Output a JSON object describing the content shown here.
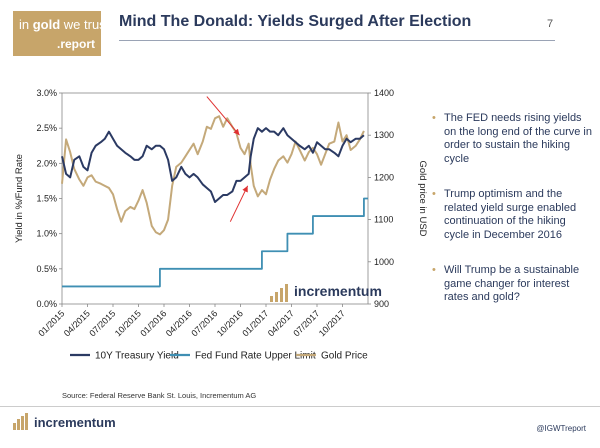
{
  "header": {
    "logo_line1_pre": "in ",
    "logo_line1_bold": "gold",
    "logo_line1_post": " we trust",
    "logo_line2": ".report",
    "title": "Mind The Donald: Yields Surged After Election",
    "page_number": "7"
  },
  "bullets": [
    "The FED needs rising yields on the long end of the curve in order to sustain the hiking cycle",
    "Trump optimism and the related yield surge enabled continuation of the hiking cycle in December 2016",
    "Will Trump be a sustainable game changer for interest rates and gold?"
  ],
  "footer": {
    "source": "Source: Federal Reserve Bank St. Louis, Incrementum AG",
    "brand": "incrementum",
    "handle": "@IGWTreport"
  },
  "colors": {
    "treasury": "#2b3a63",
    "fedfund": "#3f8fb3",
    "gold": "#c4a97a",
    "arrow": "#e03030",
    "brand": "#c7a56a"
  },
  "chart_data": {
    "type": "line",
    "watermark": "incrementum",
    "ylabel_left": "Yield in %/Fund Rate",
    "ylabel_right": "Gold price in USD",
    "ylim_left": [
      0,
      3
    ],
    "ylim_right": [
      900,
      1400
    ],
    "yticks_left": [
      "0.0%",
      "0.5%",
      "1.0%",
      "1.5%",
      "2.0%",
      "2.5%",
      "3.0%"
    ],
    "yticks_right": [
      "900",
      "1000",
      "1100",
      "1200",
      "1300",
      "1400"
    ],
    "xticks": [
      "01/2015",
      "04/2015",
      "07/2015",
      "10/2015",
      "01/2016",
      "04/2016",
      "07/2016",
      "10/2016",
      "01/2017",
      "04/2017",
      "07/2017",
      "10/2017"
    ],
    "x_range": [
      "01/2015",
      "12/2017"
    ],
    "legend_position": "bottom",
    "legend": [
      "10Y Treasury Yield",
      "Fed Fund Rate Upper Limit",
      "Gold Price"
    ],
    "series": [
      {
        "name": "10Y Treasury Yield",
        "axis": "left",
        "x": [
          2015.0,
          2015.04,
          2015.08,
          2015.12,
          2015.17,
          2015.21,
          2015.25,
          2015.29,
          2015.33,
          2015.38,
          2015.42,
          2015.46,
          2015.5,
          2015.54,
          2015.58,
          2015.62,
          2015.67,
          2015.71,
          2015.75,
          2015.79,
          2015.83,
          2015.88,
          2015.92,
          2015.96,
          2016.0,
          2016.04,
          2016.08,
          2016.12,
          2016.17,
          2016.21,
          2016.25,
          2016.29,
          2016.33,
          2016.38,
          2016.42,
          2016.46,
          2016.5,
          2016.54,
          2016.58,
          2016.62,
          2016.67,
          2016.71,
          2016.75,
          2016.79,
          2016.83,
          2016.85,
          2016.88,
          2016.92,
          2016.96,
          2017.0,
          2017.04,
          2017.08,
          2017.12,
          2017.17,
          2017.21,
          2017.25,
          2017.29,
          2017.33,
          2017.38,
          2017.42,
          2017.46,
          2017.5,
          2017.54,
          2017.58,
          2017.62,
          2017.67,
          2017.71,
          2017.75,
          2017.79,
          2017.83,
          2017.88,
          2017.92,
          2017.96
        ],
        "y": [
          2.1,
          1.85,
          1.8,
          2.05,
          2.1,
          1.95,
          1.9,
          2.15,
          2.25,
          2.3,
          2.35,
          2.45,
          2.35,
          2.25,
          2.2,
          2.15,
          2.1,
          2.05,
          2.05,
          2.1,
          2.25,
          2.2,
          2.25,
          2.25,
          2.2,
          2.05,
          1.75,
          1.8,
          1.95,
          1.85,
          1.8,
          1.85,
          1.8,
          1.7,
          1.65,
          1.6,
          1.45,
          1.5,
          1.55,
          1.55,
          1.6,
          1.75,
          1.75,
          1.8,
          1.85,
          2.1,
          2.35,
          2.5,
          2.45,
          2.5,
          2.45,
          2.45,
          2.4,
          2.5,
          2.4,
          2.35,
          2.3,
          2.25,
          2.2,
          2.25,
          2.15,
          2.3,
          2.25,
          2.2,
          2.2,
          2.15,
          2.1,
          2.25,
          2.35,
          2.3,
          2.35,
          2.35,
          2.4
        ]
      },
      {
        "name": "Fed Fund Rate Upper Limit",
        "axis": "left",
        "step": true,
        "x": [
          2015.0,
          2015.96,
          2016.96,
          2017.21,
          2017.46,
          2017.96,
          2018.0
        ],
        "y": [
          0.25,
          0.5,
          0.75,
          1.0,
          1.25,
          1.5,
          1.5
        ]
      },
      {
        "name": "Gold Price",
        "axis": "right",
        "x": [
          2015.0,
          2015.04,
          2015.08,
          2015.12,
          2015.17,
          2015.21,
          2015.25,
          2015.29,
          2015.33,
          2015.38,
          2015.42,
          2015.46,
          2015.5,
          2015.54,
          2015.58,
          2015.62,
          2015.67,
          2015.71,
          2015.75,
          2015.79,
          2015.83,
          2015.88,
          2015.92,
          2015.96,
          2016.0,
          2016.04,
          2016.08,
          2016.12,
          2016.17,
          2016.21,
          2016.25,
          2016.29,
          2016.33,
          2016.38,
          2016.42,
          2016.46,
          2016.5,
          2016.54,
          2016.58,
          2016.62,
          2016.67,
          2016.71,
          2016.75,
          2016.79,
          2016.83,
          2016.85,
          2016.88,
          2016.92,
          2016.96,
          2017.0,
          2017.04,
          2017.08,
          2017.12,
          2017.17,
          2017.21,
          2017.25,
          2017.29,
          2017.33,
          2017.38,
          2017.42,
          2017.46,
          2017.5,
          2017.54,
          2017.58,
          2017.62,
          2017.67,
          2017.71,
          2017.75,
          2017.79,
          2017.83,
          2017.88,
          2017.92,
          2017.96
        ],
        "y": [
          1185,
          1290,
          1260,
          1220,
          1195,
          1180,
          1200,
          1205,
          1190,
          1185,
          1180,
          1175,
          1160,
          1125,
          1095,
          1120,
          1130,
          1125,
          1145,
          1170,
          1140,
          1085,
          1070,
          1065,
          1075,
          1100,
          1180,
          1225,
          1235,
          1250,
          1265,
          1280,
          1255,
          1285,
          1320,
          1315,
          1340,
          1345,
          1320,
          1340,
          1320,
          1305,
          1270,
          1255,
          1280,
          1230,
          1180,
          1155,
          1170,
          1160,
          1195,
          1220,
          1240,
          1250,
          1235,
          1255,
          1285,
          1265,
          1240,
          1260,
          1270,
          1255,
          1230,
          1255,
          1280,
          1285,
          1330,
          1285,
          1300,
          1265,
          1275,
          1290,
          1310
        ]
      }
    ],
    "annotations": [
      {
        "type": "arrow",
        "from": [
          2016.42,
          2.95
        ],
        "to": [
          2016.74,
          2.4
        ]
      },
      {
        "type": "arrow",
        "from": [
          2016.65,
          1.17
        ],
        "to": [
          2016.82,
          1.68
        ]
      }
    ]
  }
}
